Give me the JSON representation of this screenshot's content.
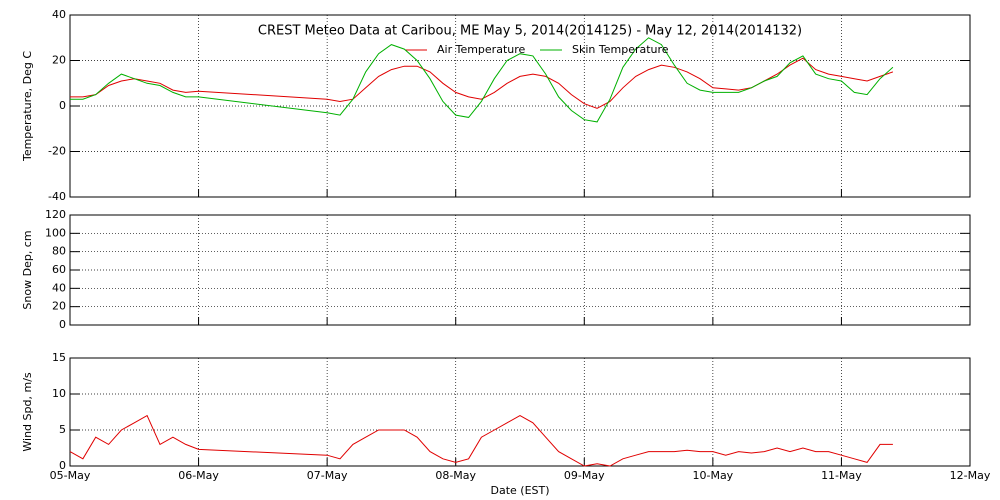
{
  "chart_data": [
    {
      "type": "line",
      "title": "CREST Meteo Data at Caribou, ME   May  5, 2014(2014125) - May 12, 2014(2014132)",
      "ylabel": "Temperature, Deg C",
      "grid": true,
      "xlim": [
        0,
        7
      ],
      "xticks": [
        {
          "value": 0,
          "label": "05-May"
        },
        {
          "value": 1,
          "label": "06-May"
        },
        {
          "value": 2,
          "label": "07-May"
        },
        {
          "value": 3,
          "label": "08-May"
        },
        {
          "value": 4,
          "label": "09-May"
        },
        {
          "value": 5,
          "label": "10-May"
        },
        {
          "value": 6,
          "label": "11-May"
        },
        {
          "value": 7,
          "label": "12-May"
        }
      ],
      "ylim": [
        -40,
        40
      ],
      "yticks": [
        -40,
        -20,
        0,
        20,
        40
      ],
      "x": [
        0,
        0.1,
        0.2,
        0.3,
        0.4,
        0.5,
        0.6,
        0.7,
        0.8,
        0.9,
        1.0,
        2.0,
        2.1,
        2.2,
        2.3,
        2.4,
        2.5,
        2.6,
        2.7,
        2.8,
        2.9,
        3.0,
        3.1,
        3.2,
        3.3,
        3.4,
        3.5,
        3.6,
        3.7,
        3.8,
        3.9,
        4.0,
        4.1,
        4.2,
        4.3,
        4.4,
        4.5,
        4.6,
        4.7,
        4.8,
        4.9,
        5.0,
        5.1,
        5.2,
        5.3,
        5.4,
        5.5,
        5.6,
        5.7,
        5.8,
        5.9,
        6.0,
        6.1,
        6.2,
        6.3,
        6.4
      ],
      "series": [
        {
          "name": "Air Temperature",
          "color": "#e00000",
          "values": [
            4,
            4,
            5,
            9,
            11,
            12,
            11,
            10,
            7,
            6,
            6.5,
            3,
            2,
            3,
            8,
            13,
            16,
            17.5,
            17.5,
            15,
            10,
            6,
            4,
            3,
            6,
            10,
            13,
            14,
            13,
            10,
            5,
            1,
            -1,
            2,
            8,
            13,
            16,
            18,
            17,
            15,
            12,
            8,
            7.5,
            7,
            8,
            11,
            14,
            18,
            21,
            16,
            14,
            13,
            12,
            11,
            13,
            15
          ]
        },
        {
          "name": "Skin Temperature",
          "color": "#00b000",
          "values": [
            3,
            3,
            5,
            10,
            14,
            12,
            10,
            9,
            6,
            4,
            4,
            -3,
            -4,
            3,
            15,
            23,
            27,
            25,
            20,
            12,
            2,
            -4,
            -5,
            2,
            12,
            20,
            23,
            22,
            14,
            4,
            -2,
            -6,
            -7,
            3,
            17,
            25,
            30,
            27,
            18,
            10,
            7,
            6,
            6,
            6,
            8,
            11,
            13,
            19,
            22,
            14,
            12,
            11,
            6,
            5,
            12,
            17
          ]
        }
      ]
    },
    {
      "type": "line",
      "ylabel": "Snow Dep, cm",
      "grid": true,
      "xlim": [
        0,
        7
      ],
      "xticks": [
        {
          "value": 0,
          "label": "05-May"
        },
        {
          "value": 1,
          "label": "06-May"
        },
        {
          "value": 2,
          "label": "07-May"
        },
        {
          "value": 3,
          "label": "08-May"
        },
        {
          "value": 4,
          "label": "09-May"
        },
        {
          "value": 5,
          "label": "10-May"
        },
        {
          "value": 6,
          "label": "11-May"
        },
        {
          "value": 7,
          "label": "12-May"
        }
      ],
      "ylim": [
        0,
        120
      ],
      "yticks": [
        0,
        20,
        40,
        60,
        80,
        100,
        120
      ]
    },
    {
      "type": "line",
      "ylabel": "Wind Spd, m/s",
      "xlabel": "Date (EST)",
      "grid": true,
      "xlim": [
        0,
        7
      ],
      "xticks": [
        {
          "value": 0,
          "label": "05-May"
        },
        {
          "value": 1,
          "label": "06-May"
        },
        {
          "value": 2,
          "label": "07-May"
        },
        {
          "value": 3,
          "label": "08-May"
        },
        {
          "value": 4,
          "label": "09-May"
        },
        {
          "value": 5,
          "label": "10-May"
        },
        {
          "value": 6,
          "label": "11-May"
        },
        {
          "value": 7,
          "label": "12-May"
        }
      ],
      "ylim": [
        0,
        15
      ],
      "yticks": [
        0,
        5,
        10,
        15
      ],
      "x": [
        0,
        0.1,
        0.2,
        0.3,
        0.4,
        0.5,
        0.6,
        0.7,
        0.8,
        0.9,
        1.0,
        2.0,
        2.1,
        2.2,
        2.3,
        2.4,
        2.5,
        2.6,
        2.7,
        2.8,
        2.9,
        3.0,
        3.1,
        3.2,
        3.3,
        3.4,
        3.5,
        3.6,
        3.7,
        3.8,
        3.9,
        4.0,
        4.1,
        4.2,
        4.3,
        4.4,
        4.5,
        4.6,
        4.7,
        4.8,
        4.9,
        5.0,
        5.1,
        5.2,
        5.3,
        5.4,
        5.5,
        5.6,
        5.7,
        5.8,
        5.9,
        6.0,
        6.1,
        6.2,
        6.3,
        6.4
      ],
      "series": [
        {
          "color": "#e00000",
          "values": [
            2,
            1,
            4,
            3,
            5,
            6,
            7,
            3,
            4,
            3,
            2.3,
            1.5,
            1,
            3,
            4,
            5,
            5,
            5,
            4,
            2,
            1,
            0.5,
            1,
            4,
            5,
            6,
            7,
            6,
            4,
            2,
            1,
            0,
            0.3,
            0,
            1,
            1.5,
            2,
            2,
            2,
            2.2,
            2,
            2,
            1.5,
            2,
            1.8,
            2,
            2.5,
            2,
            2.5,
            2,
            2,
            1.5,
            1,
            0.5,
            3,
            3
          ]
        }
      ]
    }
  ]
}
